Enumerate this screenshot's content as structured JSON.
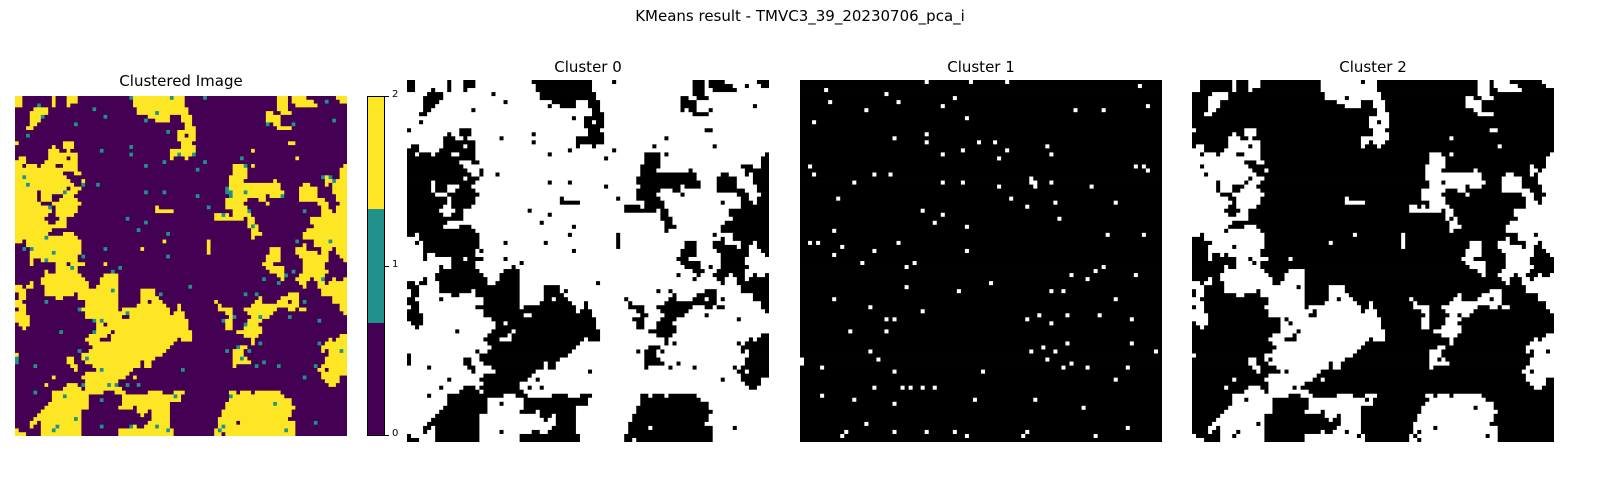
{
  "figure_title": "KMeans result - TMVC3_39_20230706_pca_i",
  "chart_data": [
    {
      "type": "heatmap",
      "title": "Clustered Image",
      "colormap": "viridis",
      "n_clusters": 3,
      "legend": "colorbar-right",
      "colorbar": {
        "ticks": [
          "0",
          "1",
          "2"
        ],
        "range": [
          0,
          2
        ],
        "colors": [
          "#440154",
          "#21918c",
          "#fde725"
        ]
      }
    },
    {
      "type": "heatmap",
      "title": "Cluster 0",
      "colors": [
        "#000000",
        "#ffffff"
      ]
    },
    {
      "type": "heatmap",
      "title": "Cluster 1",
      "colors": [
        "#000000",
        "#ffffff"
      ]
    },
    {
      "type": "heatmap",
      "title": "Cluster 2",
      "colors": [
        "#000000",
        "#ffffff"
      ]
    }
  ]
}
